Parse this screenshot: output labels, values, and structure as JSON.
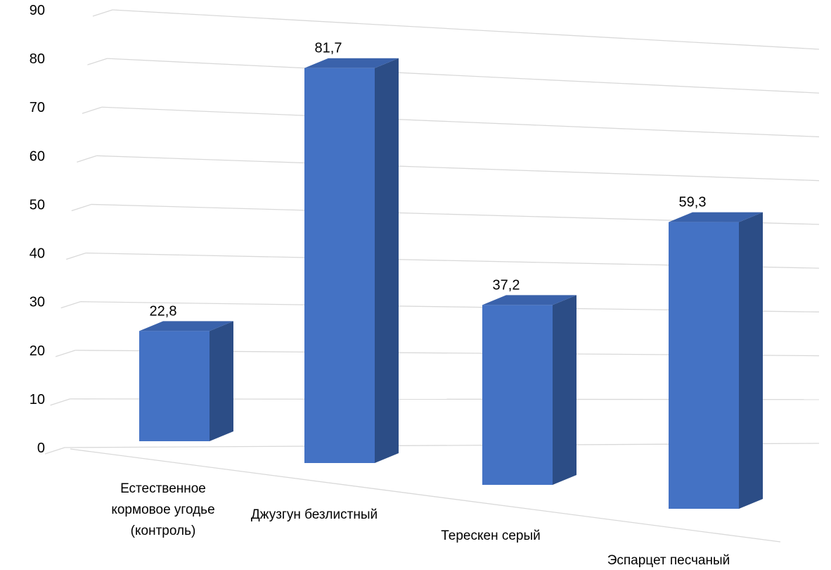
{
  "chart_data": {
    "type": "bar",
    "style": "3d-column",
    "title": "",
    "xlabel": "",
    "ylabel": "",
    "ylim": [
      0,
      90
    ],
    "yticks": [
      0,
      10,
      20,
      30,
      40,
      50,
      60,
      70,
      80,
      90
    ],
    "grid": true,
    "legend": "none",
    "bar_color": "#4472c4",
    "categories": [
      [
        "Естественное",
        "кормовое угодье",
        "(контроль)"
      ],
      [
        "Джузгун безлистный"
      ],
      [
        "Терескен серый"
      ],
      [
        "Эспарцет песчаный"
      ]
    ],
    "values": [
      22.8,
      81.7,
      37.2,
      59.3
    ],
    "data_labels": [
      "22,8",
      "81,7",
      "37,2",
      "59,3"
    ]
  }
}
